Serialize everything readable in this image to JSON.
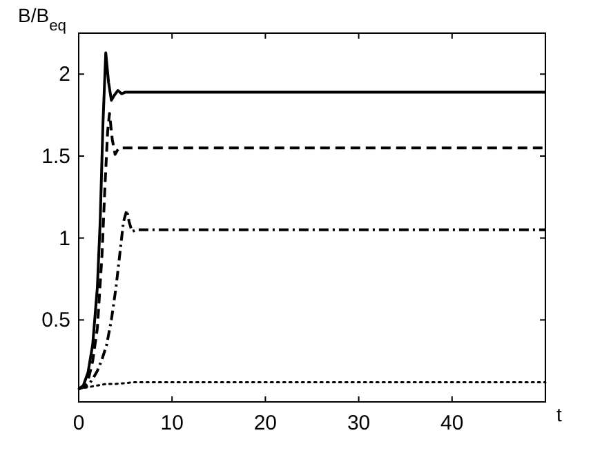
{
  "chart_data": {
    "type": "line",
    "ylabel": "B/B$_{eq}$",
    "xlabel": "t",
    "xlim": [
      0,
      50
    ],
    "ylim": [
      0,
      2.25
    ],
    "xticks": [
      0,
      10,
      20,
      30,
      40
    ],
    "yticks": [
      0.5,
      1,
      1.5,
      2
    ],
    "grid": false,
    "series": [
      {
        "color": "#000000",
        "line_style": "solid",
        "x": [
          0,
          0.5,
          1,
          1.5,
          2,
          2.3,
          2.6,
          2.9,
          3.2,
          3.5,
          3.8,
          4.2,
          4.6,
          5,
          6,
          10,
          20,
          30,
          40,
          50
        ],
        "values": [
          0.08,
          0.1,
          0.18,
          0.35,
          0.7,
          1.1,
          1.7,
          2.13,
          1.95,
          1.84,
          1.87,
          1.9,
          1.88,
          1.89,
          1.89,
          1.89,
          1.89,
          1.89,
          1.89,
          1.89
        ]
      },
      {
        "color": "#000000",
        "line_style": "dashed",
        "x": [
          0,
          0.5,
          1,
          1.5,
          2,
          2.5,
          2.8,
          3.1,
          3.3,
          3.6,
          3.9,
          4.3,
          5,
          6,
          10,
          20,
          30,
          40,
          50
        ],
        "values": [
          0.08,
          0.09,
          0.13,
          0.25,
          0.45,
          0.9,
          1.3,
          1.65,
          1.76,
          1.6,
          1.51,
          1.55,
          1.55,
          1.55,
          1.55,
          1.55,
          1.55,
          1.55,
          1.55
        ]
      },
      {
        "color": "#000000",
        "line_style": "dashdot",
        "x": [
          0,
          0.5,
          1,
          1.5,
          2,
          2.5,
          3,
          3.5,
          4,
          4.5,
          4.8,
          5.15,
          5.4,
          5.7,
          6.2,
          7,
          10,
          20,
          30,
          40,
          50
        ],
        "values": [
          0.08,
          0.09,
          0.1,
          0.14,
          0.19,
          0.26,
          0.35,
          0.5,
          0.7,
          0.95,
          1.1,
          1.17,
          1.1,
          1.04,
          1.05,
          1.05,
          1.05,
          1.05,
          1.05,
          1.05,
          1.05
        ]
      },
      {
        "color": "#000000",
        "line_style": "dotted",
        "x": [
          0,
          1,
          2,
          3,
          4,
          6,
          8,
          10,
          15,
          20,
          30,
          40,
          50
        ],
        "values": [
          0.08,
          0.09,
          0.1,
          0.11,
          0.11,
          0.12,
          0.12,
          0.12,
          0.12,
          0.12,
          0.12,
          0.12,
          0.12
        ]
      }
    ]
  }
}
